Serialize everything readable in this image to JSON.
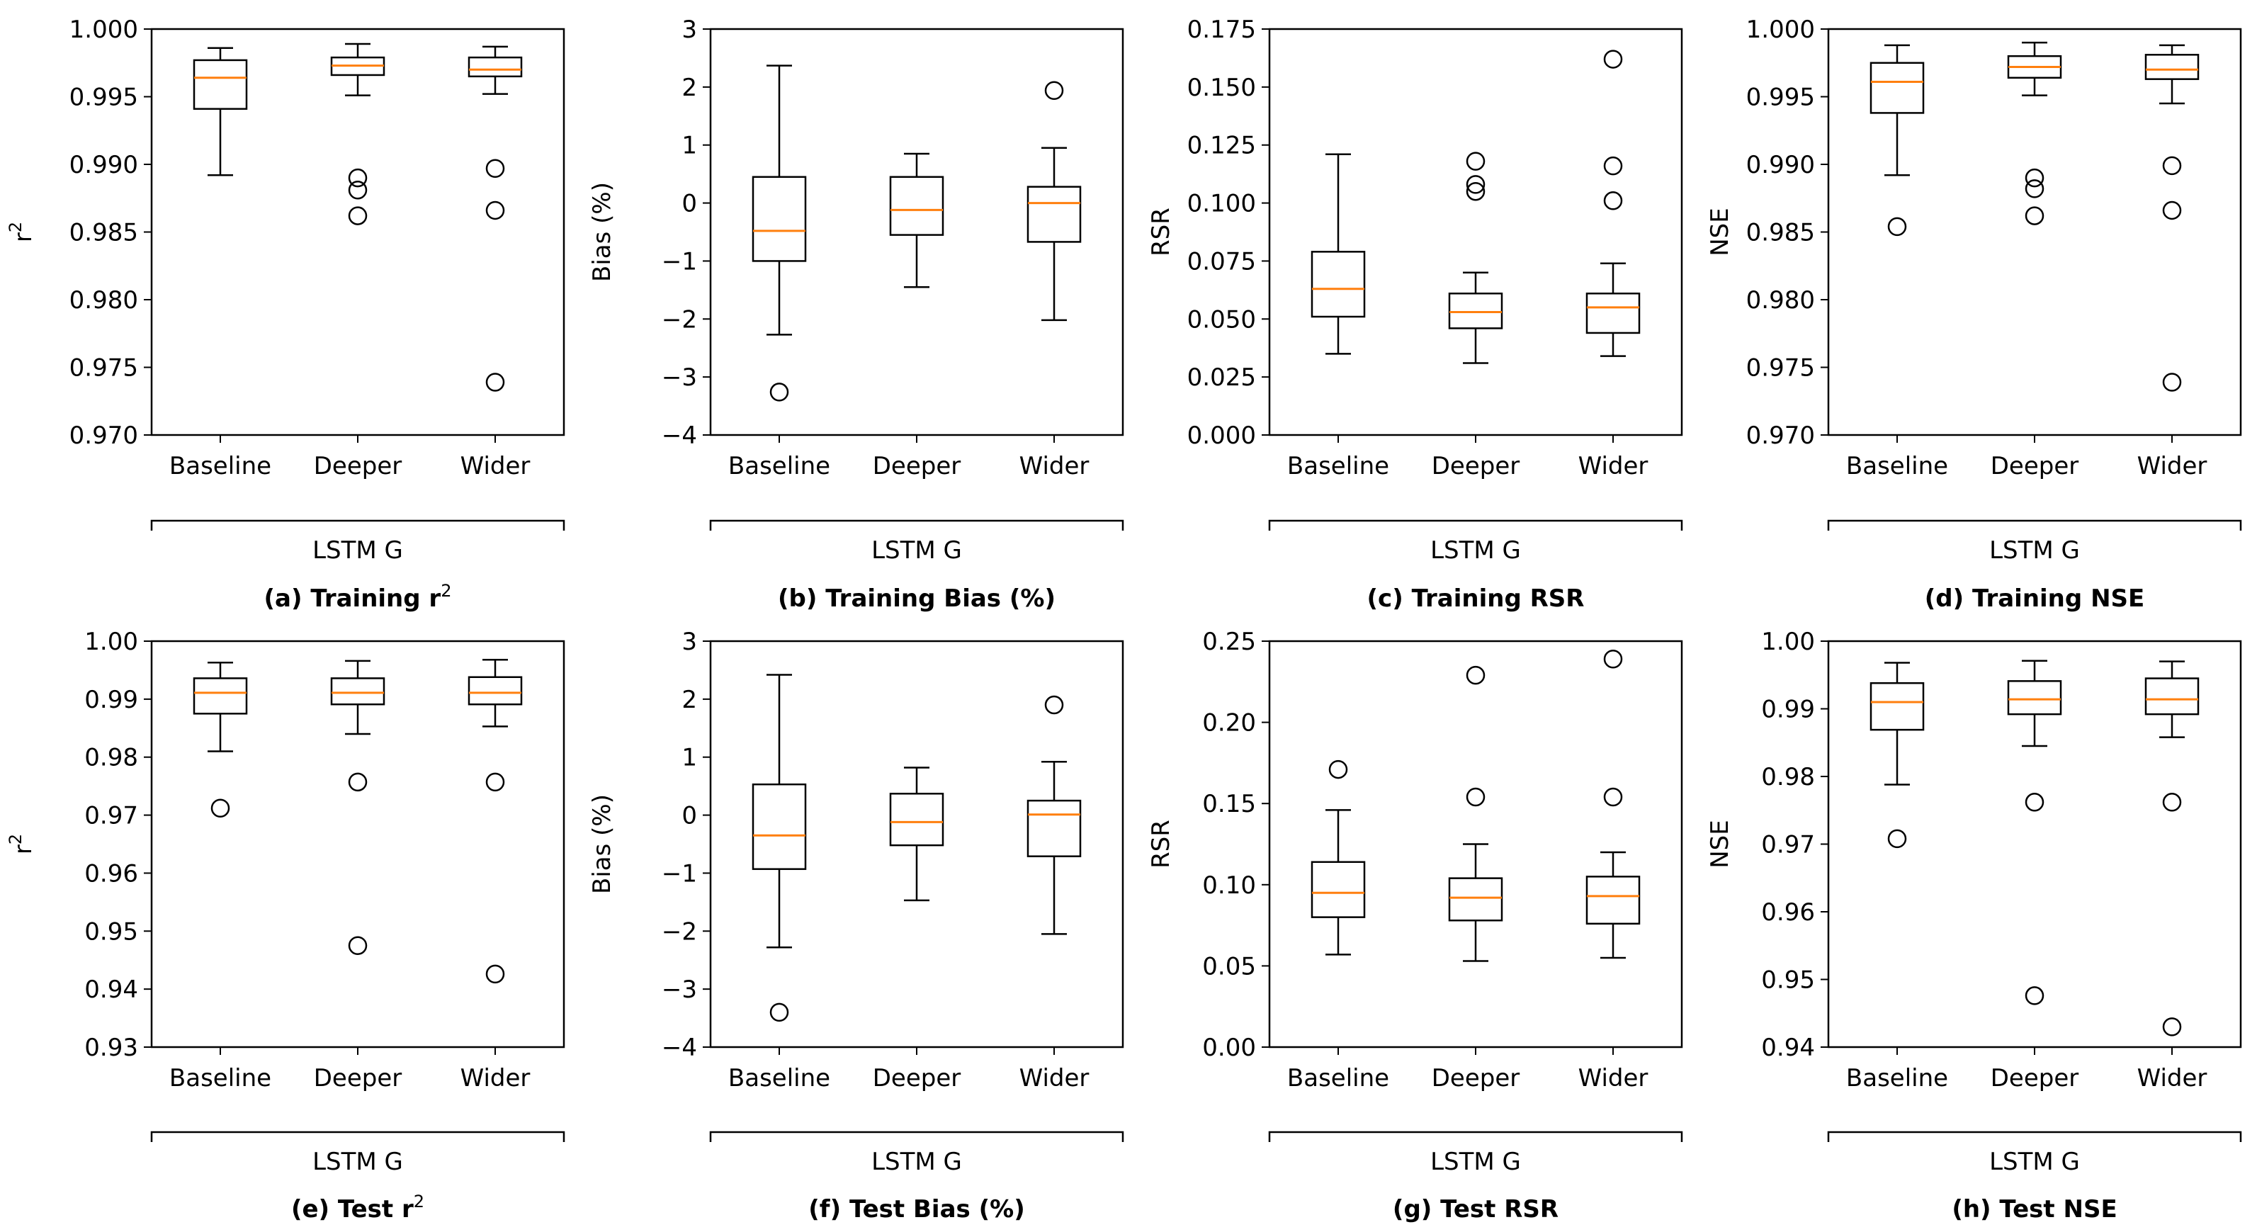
{
  "chart_data": [
    {
      "id": "a",
      "type": "box",
      "caption": "(a) Training r",
      "caption_sup": "2",
      "ylabel": "r",
      "ylabel_sup": "2",
      "ylim": [
        0.97,
        1.0
      ],
      "yticks": [
        "0.970",
        "0.975",
        "0.980",
        "0.985",
        "0.990",
        "0.995",
        "1.000"
      ],
      "categories": [
        "Baseline",
        "Deeper",
        "Wider"
      ],
      "group_label": "LSTM G",
      "boxes": [
        {
          "whislo": 0.9892,
          "q1": 0.9941,
          "med": 0.9964,
          "q3": 0.9977,
          "whishi": 0.9986,
          "fliers": []
        },
        {
          "whislo": 0.9951,
          "q1": 0.9966,
          "med": 0.9973,
          "q3": 0.9979,
          "whishi": 0.9989,
          "fliers": [
            0.989,
            0.9881,
            0.9862
          ]
        },
        {
          "whislo": 0.9952,
          "q1": 0.9965,
          "med": 0.997,
          "q3": 0.9979,
          "whishi": 0.9987,
          "fliers": [
            0.9897,
            0.9866,
            0.9739
          ]
        }
      ]
    },
    {
      "id": "b",
      "type": "box",
      "caption": "(b) Training Bias (%)",
      "caption_sup": "",
      "ylabel": "Bias (%)",
      "ylabel_sup": "",
      "ylim": [
        -4,
        3
      ],
      "yticks": [
        "−4",
        "−3",
        "−2",
        "−1",
        "0",
        "1",
        "2",
        "3"
      ],
      "categories": [
        "Baseline",
        "Deeper",
        "Wider"
      ],
      "group_label": "LSTM G",
      "boxes": [
        {
          "whislo": -2.27,
          "q1": -1.0,
          "med": -0.48,
          "q3": 0.45,
          "whishi": 2.37,
          "fliers": [
            -3.26
          ]
        },
        {
          "whislo": -1.45,
          "q1": -0.55,
          "med": -0.12,
          "q3": 0.45,
          "whishi": 0.85,
          "fliers": []
        },
        {
          "whislo": -2.02,
          "q1": -0.67,
          "med": 0.0,
          "q3": 0.28,
          "whishi": 0.95,
          "fliers": [
            1.94
          ]
        }
      ]
    },
    {
      "id": "c",
      "type": "box",
      "caption": "(c) Training RSR",
      "caption_sup": "",
      "ylabel": "RSR",
      "ylabel_sup": "",
      "ylim": [
        0,
        0.175
      ],
      "yticks": [
        "0.000",
        "0.025",
        "0.050",
        "0.075",
        "0.100",
        "0.125",
        "0.150",
        "0.175"
      ],
      "categories": [
        "Baseline",
        "Deeper",
        "Wider"
      ],
      "group_label": "LSTM G",
      "boxes": [
        {
          "whislo": 0.035,
          "q1": 0.051,
          "med": 0.063,
          "q3": 0.079,
          "whishi": 0.121,
          "fliers": []
        },
        {
          "whislo": 0.031,
          "q1": 0.046,
          "med": 0.053,
          "q3": 0.061,
          "whishi": 0.07,
          "fliers": [
            0.118,
            0.108,
            0.105
          ]
        },
        {
          "whislo": 0.034,
          "q1": 0.044,
          "med": 0.055,
          "q3": 0.061,
          "whishi": 0.074,
          "fliers": [
            0.162,
            0.116,
            0.101
          ]
        }
      ]
    },
    {
      "id": "d",
      "type": "box",
      "caption": "(d) Training NSE",
      "caption_sup": "",
      "ylabel": "NSE",
      "ylabel_sup": "",
      "ylim": [
        0.97,
        1.0
      ],
      "yticks": [
        "0.970",
        "0.975",
        "0.980",
        "0.985",
        "0.990",
        "0.995",
        "1.000"
      ],
      "categories": [
        "Baseline",
        "Deeper",
        "Wider"
      ],
      "group_label": "LSTM G",
      "boxes": [
        {
          "whislo": 0.9892,
          "q1": 0.9938,
          "med": 0.9961,
          "q3": 0.9975,
          "whishi": 0.9988,
          "fliers": [
            0.9854
          ]
        },
        {
          "whislo": 0.9951,
          "q1": 0.9964,
          "med": 0.9972,
          "q3": 0.998,
          "whishi": 0.999,
          "fliers": [
            0.989,
            0.9882,
            0.9862
          ]
        },
        {
          "whislo": 0.9945,
          "q1": 0.9963,
          "med": 0.997,
          "q3": 0.9981,
          "whishi": 0.9988,
          "fliers": [
            0.9899,
            0.9866,
            0.9739
          ]
        }
      ]
    },
    {
      "id": "e",
      "type": "box",
      "caption": "(e) Test r",
      "caption_sup": "2",
      "ylabel": "r",
      "ylabel_sup": "2",
      "ylim": [
        0.93,
        1.0
      ],
      "yticks": [
        "0.93",
        "0.94",
        "0.95",
        "0.96",
        "0.97",
        "0.98",
        "0.99",
        "1.00"
      ],
      "categories": [
        "Baseline",
        "Deeper",
        "Wider"
      ],
      "group_label": "LSTM G",
      "boxes": [
        {
          "whislo": 0.981,
          "q1": 0.9875,
          "med": 0.9911,
          "q3": 0.9936,
          "whishi": 0.9963,
          "fliers": [
            0.9712
          ]
        },
        {
          "whislo": 0.984,
          "q1": 0.9891,
          "med": 0.9911,
          "q3": 0.9936,
          "whishi": 0.9966,
          "fliers": [
            0.9757,
            0.9475
          ]
        },
        {
          "whislo": 0.9853,
          "q1": 0.9891,
          "med": 0.9911,
          "q3": 0.9938,
          "whishi": 0.9968,
          "fliers": [
            0.9757,
            0.9426
          ]
        }
      ]
    },
    {
      "id": "f",
      "type": "box",
      "caption": "(f) Test Bias (%)",
      "caption_sup": "",
      "ylabel": "Bias (%)",
      "ylabel_sup": "",
      "ylim": [
        -4,
        3
      ],
      "yticks": [
        "−4",
        "−3",
        "−2",
        "−1",
        "0",
        "1",
        "2",
        "3"
      ],
      "categories": [
        "Baseline",
        "Deeper",
        "Wider"
      ],
      "group_label": "LSTM G",
      "boxes": [
        {
          "whislo": -2.28,
          "q1": -0.93,
          "med": -0.35,
          "q3": 0.53,
          "whishi": 2.42,
          "fliers": [
            -3.4
          ]
        },
        {
          "whislo": -1.47,
          "q1": -0.52,
          "med": -0.12,
          "q3": 0.37,
          "whishi": 0.82,
          "fliers": []
        },
        {
          "whislo": -2.05,
          "q1": -0.71,
          "med": 0.01,
          "q3": 0.25,
          "whishi": 0.92,
          "fliers": [
            1.9
          ]
        }
      ]
    },
    {
      "id": "g",
      "type": "box",
      "caption": "(g) Test RSR",
      "caption_sup": "",
      "ylabel": "RSR",
      "ylabel_sup": "",
      "ylim": [
        0,
        0.25
      ],
      "yticks": [
        "0.00",
        "0.05",
        "0.10",
        "0.15",
        "0.20",
        "0.25"
      ],
      "categories": [
        "Baseline",
        "Deeper",
        "Wider"
      ],
      "group_label": "LSTM G",
      "boxes": [
        {
          "whislo": 0.057,
          "q1": 0.08,
          "med": 0.095,
          "q3": 0.114,
          "whishi": 0.146,
          "fliers": [
            0.171
          ]
        },
        {
          "whislo": 0.053,
          "q1": 0.078,
          "med": 0.092,
          "q3": 0.104,
          "whishi": 0.125,
          "fliers": [
            0.229,
            0.154
          ]
        },
        {
          "whislo": 0.055,
          "q1": 0.076,
          "med": 0.093,
          "q3": 0.105,
          "whishi": 0.12,
          "fliers": [
            0.239,
            0.154
          ]
        }
      ]
    },
    {
      "id": "h",
      "type": "box",
      "caption": "(h) Test NSE",
      "caption_sup": "",
      "ylabel": "NSE",
      "ylabel_sup": "",
      "ylim": [
        0.94,
        1.0
      ],
      "yticks": [
        "0.94",
        "0.95",
        "0.96",
        "0.97",
        "0.98",
        "0.99",
        "1.00"
      ],
      "categories": [
        "Baseline",
        "Deeper",
        "Wider"
      ],
      "group_label": "LSTM G",
      "boxes": [
        {
          "whislo": 0.9788,
          "q1": 0.9869,
          "med": 0.991,
          "q3": 0.9938,
          "whishi": 0.9968,
          "fliers": [
            0.9708
          ]
        },
        {
          "whislo": 0.9845,
          "q1": 0.9892,
          "med": 0.9914,
          "q3": 0.9941,
          "whishi": 0.9971,
          "fliers": [
            0.9762,
            0.9476
          ]
        },
        {
          "whislo": 0.9858,
          "q1": 0.9892,
          "med": 0.9914,
          "q3": 0.9945,
          "whishi": 0.997,
          "fliers": [
            0.9762,
            0.943
          ]
        }
      ]
    }
  ]
}
